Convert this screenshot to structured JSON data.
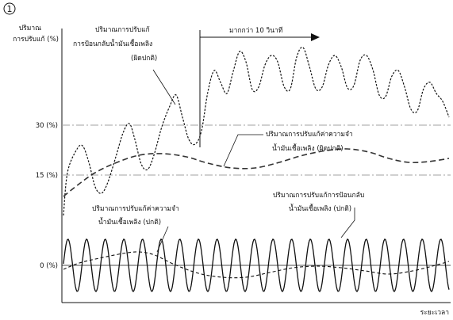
{
  "figure": {
    "number": "1",
    "y_axis_label_line1": "ปริมาณ",
    "y_axis_label_line2": "การปรับแก้ (%)",
    "x_axis_label": "ระยะเวลา",
    "y_ticks": [
      "30 (%)",
      "15 (%)",
      "0 (%)"
    ],
    "duration_label": "มากกว่า 10 วินาที",
    "annotations": {
      "feedback_abnormal": [
        "ปริมาณการปรับแก้",
        "การป้อนกลับน้ำมันเชื้อเพลิง",
        "(ผิดปกติ)"
      ],
      "memory_abnormal": [
        "ปริมาณการปรับแก้ค่าความจำ",
        "น้ำมันเชื้อเพลิง (ผิดปกติ)"
      ],
      "memory_normal": [
        "ปริมาณการปรับแก้ค่าความจำ",
        "น้ำมันเชื้อเพลิง (ปกติ)"
      ],
      "feedback_normal": [
        "ปริมาณการปรับแก้การป้อนกลับ",
        "น้ำมันเชื้อเพลิง (ปกติ)"
      ]
    }
  },
  "colors": {
    "line": "#111111",
    "threshold": "#a0a0a0",
    "axis": "#111111"
  }
}
